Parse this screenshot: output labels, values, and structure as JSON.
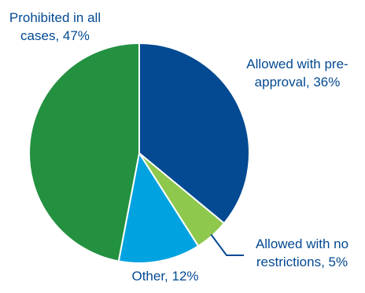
{
  "chart_data": {
    "type": "pie",
    "title": "",
    "start_angle_deg": 0,
    "direction": "clockwise",
    "slices": [
      {
        "name": "Allowed with pre-approval",
        "value": 36,
        "color": "#034a92",
        "label_lines": [
          "Allowed with pre-",
          "approval, 36%"
        ],
        "label_color": "#034a92"
      },
      {
        "name": "Allowed with no restrictions",
        "value": 5,
        "color": "#8ec84c",
        "label_lines": [
          "Allowed with no",
          "restrictions, 5%"
        ],
        "label_color": "#034a92"
      },
      {
        "name": "Other",
        "value": 12,
        "color": "#00a3e0",
        "label_lines": [
          "Other, 12%"
        ],
        "label_color": "#034a92"
      },
      {
        "name": "Prohibited in all cases",
        "value": 47,
        "color": "#239140",
        "label_lines": [
          "Prohibited in all",
          "cases, 47%"
        ],
        "label_color": "#034a92"
      }
    ],
    "slice_border_color": "#ffffff",
    "leader_line_color": "#034a92"
  }
}
